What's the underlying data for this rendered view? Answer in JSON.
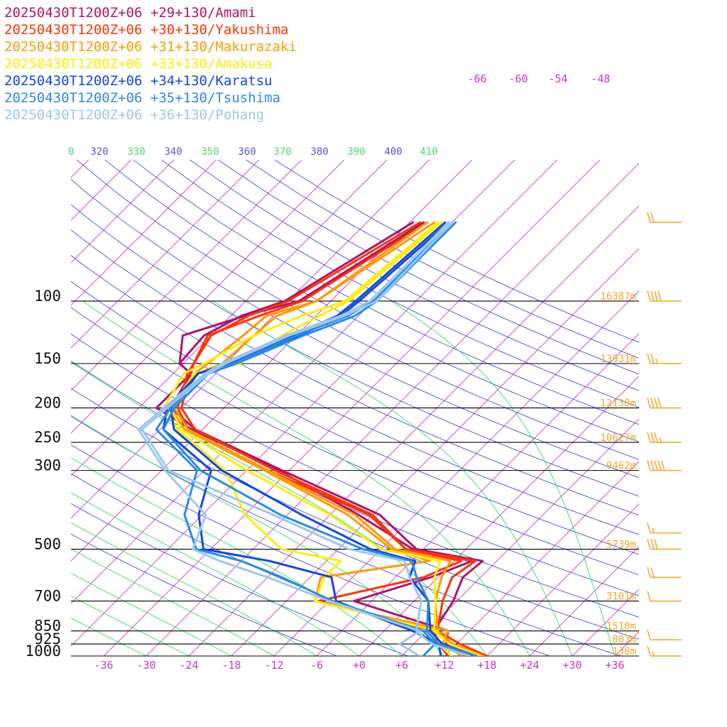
{
  "chart_data": {
    "type": "line",
    "title": "",
    "xlabel": "",
    "ylabel": "",
    "x_axis": {
      "unit": "degC",
      "range": [
        -40,
        40
      ],
      "tick_labels": [
        "-36",
        "-30",
        "-24",
        "-18",
        "-12",
        "-6",
        "+0",
        "+6",
        "+12",
        "+18",
        "+24",
        "+30",
        "+36"
      ]
    },
    "y_axis": {
      "unit": "hPa",
      "scale": "log",
      "levels": [
        100,
        150,
        200,
        250,
        300,
        500,
        700,
        850,
        925,
        1000
      ],
      "level_labels": [
        "100",
        "150",
        "200",
        "250",
        "300",
        "500",
        "700",
        "850",
        "925",
        "1000"
      ]
    },
    "heights": [
      {
        "p": 100,
        "label": "16387m"
      },
      {
        "p": 150,
        "label": "13931m"
      },
      {
        "p": 200,
        "label": "12138m"
      },
      {
        "p": 250,
        "label": "10627m"
      },
      {
        "p": 300,
        "label": "9462m"
      },
      {
        "p": 500,
        "label": "5739m"
      },
      {
        "p": 700,
        "label": "3101m"
      },
      {
        "p": 850,
        "label": "1510m"
      },
      {
        "p": 925,
        "label": "803m"
      },
      {
        "p": 1000,
        "label": "138m"
      }
    ],
    "theta_labels": [
      "0",
      "320",
      "330",
      "340",
      "350",
      "360",
      "370",
      "380",
      "390",
      "400",
      "410"
    ],
    "top_labels": [
      "-66",
      "-60",
      "-54",
      "-48"
    ],
    "pressure_points": [
      60,
      100,
      110,
      125,
      150,
      160,
      200,
      230,
      300,
      400,
      500,
      540,
      600,
      700,
      850,
      925,
      1000
    ],
    "series": [
      {
        "name": "20250430T1200Z+06 +29+130/Amami",
        "color": "#b0136c",
        "temperature": [
          -52.0,
          -58.5,
          -64.0,
          -70.0,
          -66.5,
          -63.5,
          -61.5,
          -55.0,
          -37.0,
          -17.0,
          -7.0,
          4.0,
          3.5,
          5.5,
          7.0,
          9.5,
          15.0
        ],
        "dewpoint": [
          -53.5,
          -60.5,
          -64.5,
          -67.0,
          -66.5,
          -63.5,
          -63.5,
          -55.5,
          -37.5,
          -20.0,
          -7.5,
          2.5,
          -1.0,
          -8.5,
          9.0,
          10.5,
          15.0
        ]
      },
      {
        "name": "20250430T1200Z+06 +30+130/Yakushima",
        "color": "#ff3300",
        "temperature": [
          -51.5,
          -58.0,
          -62.0,
          -66.5,
          -64.5,
          -63.5,
          -60.0,
          -55.0,
          -38.0,
          -18.0,
          -8.5,
          3.0,
          2.0,
          4.0,
          7.5,
          12.5,
          18.0
        ],
        "dewpoint": [
          -52.5,
          -60.0,
          -63.5,
          -66.0,
          -64.5,
          -64.0,
          -60.5,
          -56.0,
          -39.0,
          -18.5,
          -8.5,
          1.0,
          -2.0,
          -13.5,
          7.0,
          9.5,
          12.5
        ]
      },
      {
        "name": "20250430T1200Z+06 +31+130/Makurazaki",
        "color": "#ff9900",
        "temperature": [
          -50.5,
          -56.0,
          -59.5,
          -60.0,
          -60.5,
          -62.5,
          -61.0,
          -56.0,
          -39.0,
          -20.5,
          -10.0,
          -0.5,
          0.5,
          3.0,
          7.5,
          11.5,
          17.5
        ],
        "dewpoint": [
          -51.5,
          -56.0,
          -61.0,
          -61.5,
          -62.5,
          -63.0,
          -61.5,
          -56.5,
          -39.5,
          -21.5,
          -10.5,
          -3.5,
          -16.5,
          -14.0,
          9.0,
          10.0,
          14.5
        ]
      },
      {
        "name": "20250430T1200Z+06 +33+130/Amakusa",
        "color": "#ffee00",
        "temperature": [
          -49.5,
          -51.5,
          -53.5,
          -56.0,
          -58.0,
          -63.0,
          -61.5,
          -57.0,
          -42.0,
          -24.0,
          -12.0,
          -2.0,
          -0.5,
          3.0,
          7.0,
          11.0,
          17.0
        ],
        "dewpoint": [
          -50.0,
          -52.0,
          -56.0,
          -60.0,
          -63.0,
          -64.5,
          -62.5,
          -57.5,
          -45.0,
          -36.0,
          -26.0,
          -16.0,
          -16.0,
          -14.0,
          7.5,
          9.5,
          13.0
        ]
      },
      {
        "name": "20250430T1200Z+06 +34+130/Karatsu",
        "color": "#1048e0",
        "temperature": [
          -48.5,
          -50.0,
          -50.5,
          -53.5,
          -59.0,
          -62.5,
          -61.5,
          -58.0,
          -45.5,
          -28.0,
          -13.5,
          -5.5,
          -4.0,
          2.0,
          6.5,
          10.0,
          16.5
        ],
        "dewpoint": [
          -49.0,
          -50.5,
          -51.0,
          -54.5,
          -59.5,
          -62.5,
          -62.0,
          -59.5,
          -47.0,
          -42.5,
          -37.0,
          -26.0,
          -15.0,
          -11.0,
          4.0,
          9.5,
          11.5
        ]
      },
      {
        "name": "20250430T1200Z+06 +35+130/Tsushima",
        "color": "#2a8ae6",
        "temperature": [
          -47.5,
          -47.5,
          -48.5,
          -53.0,
          -58.5,
          -61.0,
          -61.0,
          -59.5,
          -48.5,
          -31.0,
          -14.5,
          -6.0,
          -3.0,
          2.0,
          6.0,
          9.5,
          16.5
        ],
        "dewpoint": [
          -48.0,
          -48.0,
          -49.5,
          -54.0,
          -59.0,
          -61.5,
          -61.5,
          -60.5,
          -49.0,
          -44.5,
          -38.0,
          -30.0,
          -22.0,
          -11.5,
          5.5,
          9.0,
          9.0
        ]
      },
      {
        "name": "20250430T1200Z+06 +36+130/Pohang",
        "color": "#99c8f0",
        "temperature": [
          -48.0,
          -47.5,
          -50.0,
          -55.0,
          -60.0,
          -61.0,
          -62.0,
          -62.5,
          -53.0,
          -32.0,
          -16.5,
          -7.0,
          -4.0,
          1.0,
          4.5,
          8.5,
          15.5
        ],
        "dewpoint": [
          -48.5,
          -48.5,
          -50.5,
          -55.5,
          -60.5,
          -61.5,
          -62.5,
          -63.0,
          -53.5,
          -41.5,
          -38.5,
          -33.0,
          -24.0,
          -12.0,
          5.0,
          4.0,
          8.5
        ]
      }
    ],
    "wind_barbs": [
      {
        "p": 60,
        "speed_kt": 20
      },
      {
        "p": 100,
        "speed_kt": 40
      },
      {
        "p": 150,
        "speed_kt": 25
      },
      {
        "p": 200,
        "speed_kt": 40
      },
      {
        "p": 250,
        "speed_kt": 35
      },
      {
        "p": 300,
        "speed_kt": 50
      },
      {
        "p": 450,
        "speed_kt": 15
      },
      {
        "p": 500,
        "speed_kt": 30
      },
      {
        "p": 600,
        "speed_kt": 20
      },
      {
        "p": 700,
        "speed_kt": 10
      },
      {
        "p": 900,
        "speed_kt": 10
      },
      {
        "p": 1000,
        "speed_kt": 15
      }
    ],
    "colors": {
      "isobar": "#000000",
      "isotherm": "#cc33cc",
      "dry_adiabat": "#4a4ae8",
      "moist_adiabat": "#33dd55",
      "height_label": "#f5a623",
      "axis_tick": "#cc33cc",
      "wind_barb": "#f5a623"
    },
    "grid": true,
    "legend_position": "top-left"
  }
}
